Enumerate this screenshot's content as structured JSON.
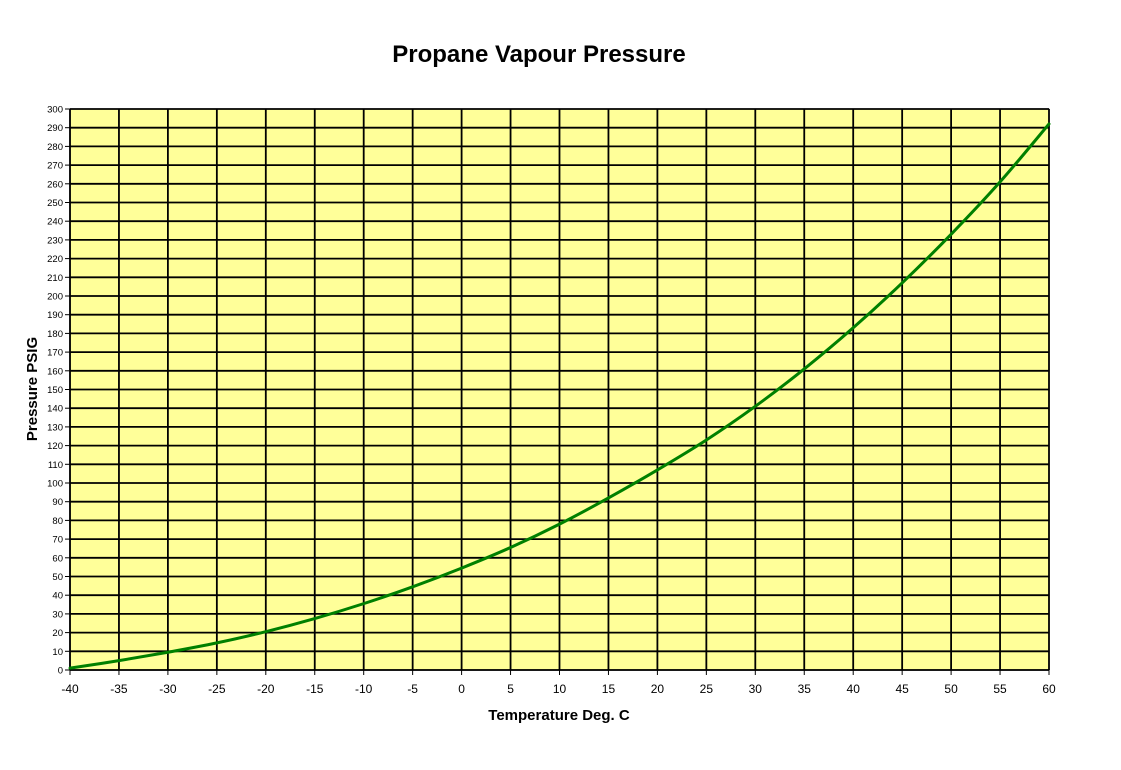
{
  "chart_data": {
    "type": "line",
    "title": "Propane Vapour Pressure",
    "xlabel": "Temperature Deg. C",
    "ylabel": "Pressure PSIG",
    "xlim": [
      -40,
      60
    ],
    "ylim": [
      0,
      300
    ],
    "x_ticks": [
      -40,
      -35,
      -30,
      -25,
      -20,
      -15,
      -10,
      -5,
      0,
      5,
      10,
      15,
      20,
      25,
      30,
      35,
      40,
      45,
      50,
      55,
      60
    ],
    "y_ticks": [
      0,
      10,
      20,
      30,
      40,
      50,
      60,
      70,
      80,
      90,
      100,
      110,
      120,
      130,
      140,
      150,
      160,
      170,
      180,
      190,
      200,
      210,
      220,
      230,
      240,
      250,
      260,
      270,
      280,
      290,
      300
    ],
    "grid": true,
    "plot_background": "#FFFF99",
    "series": [
      {
        "name": "Propane",
        "color": "#008000",
        "x": [
          -40,
          -35,
          -30,
          -25,
          -20,
          -15,
          -10,
          -5,
          0,
          5,
          10,
          15,
          20,
          25,
          30,
          35,
          40,
          45,
          50,
          55,
          60
        ],
        "values": [
          1,
          5,
          9.5,
          14.5,
          20.5,
          27.5,
          35.5,
          44.5,
          54.5,
          65.5,
          78,
          92,
          107,
          123,
          141,
          161,
          183,
          207,
          233,
          261,
          292
        ]
      }
    ]
  }
}
